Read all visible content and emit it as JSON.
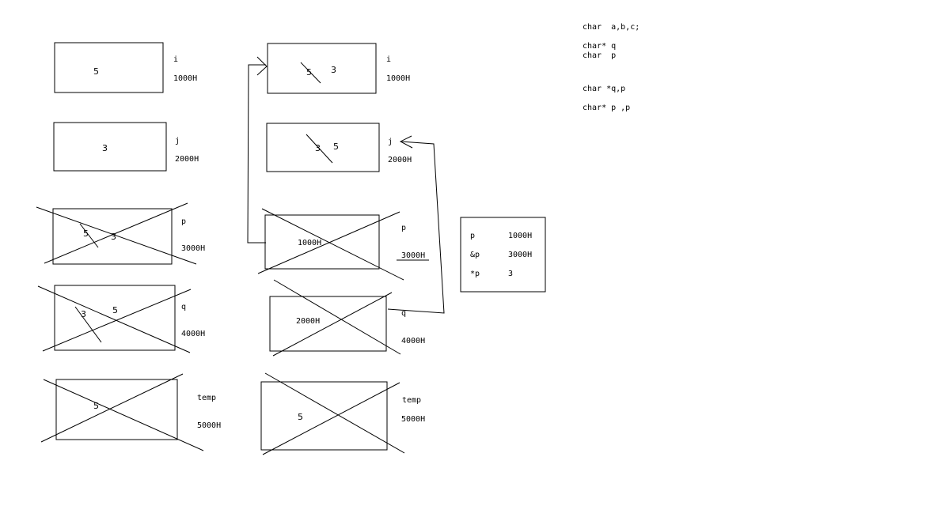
{
  "left": {
    "i": {
      "value": "5",
      "name": "i",
      "addr": "1000H"
    },
    "j": {
      "value": "3",
      "name": "j",
      "addr": "2000H"
    },
    "p": {
      "old": "5",
      "new": "3",
      "name": "p",
      "addr": "3000H"
    },
    "q": {
      "old": "3",
      "new": "5",
      "name": "q",
      "addr": "4000H"
    },
    "temp": {
      "value": "5",
      "name": "temp",
      "addr": "5000H"
    }
  },
  "right": {
    "i": {
      "old": "5",
      "new": "3",
      "name": "i",
      "addr": "1000H"
    },
    "j": {
      "old": "3",
      "new": "5",
      "name": "j",
      "addr": "2000H"
    },
    "p": {
      "value": "1000H",
      "name": "p",
      "addr": "3000H"
    },
    "q": {
      "value": "2000H",
      "name": "q",
      "addr": "4000H"
    },
    "temp": {
      "value": "5",
      "name": "temp",
      "addr": "5000H"
    }
  },
  "table": {
    "rows": [
      {
        "label": "p",
        "value": "1000H"
      },
      {
        "label": "&p",
        "value": "3000H"
      },
      {
        "label": "*p",
        "value": "3"
      }
    ]
  },
  "code": {
    "line1": "char  a,b,c;",
    "line2": "char* q",
    "line3": "char  p",
    "line4": "char *q,p",
    "line5": "char* p ,p"
  }
}
